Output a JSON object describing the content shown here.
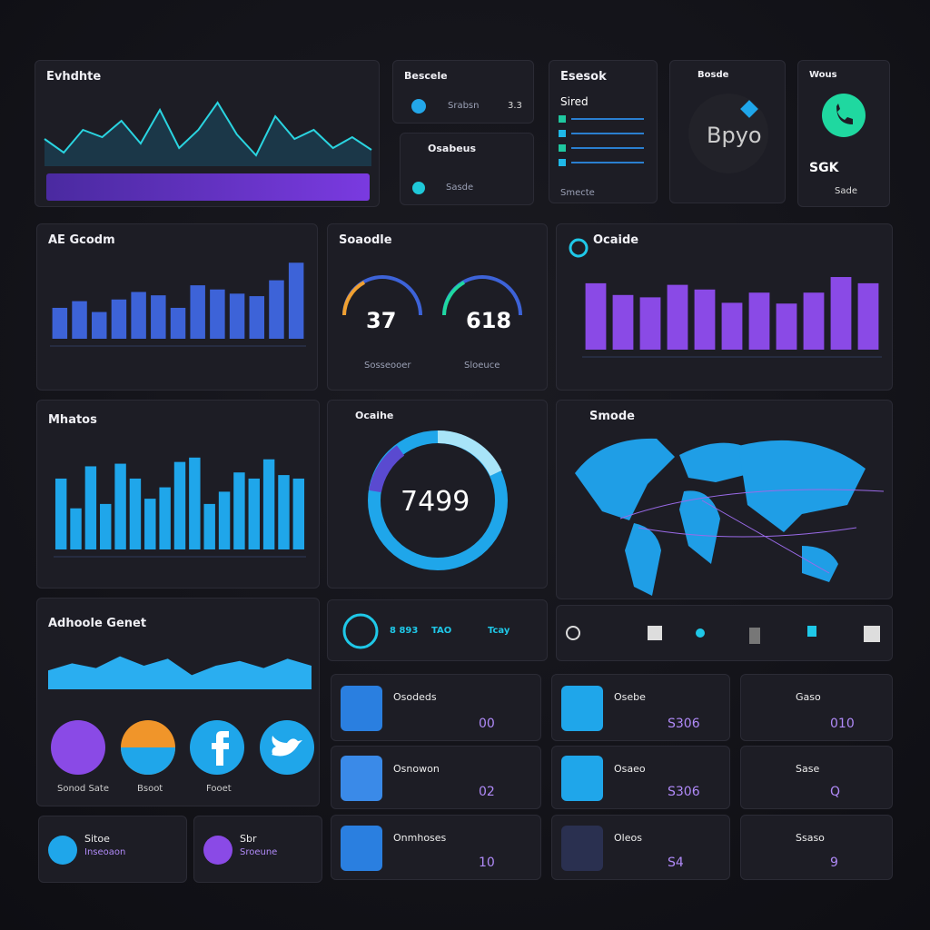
{
  "chart_data": [
    {
      "type": "line",
      "title": "Evhdhte",
      "values": [
        30,
        15,
        40,
        32,
        50,
        25,
        62,
        20,
        40,
        70,
        35,
        12,
        55,
        30,
        40,
        20,
        32,
        18
      ],
      "color": "#2ad4e0",
      "ylim": [
        0,
        80
      ]
    },
    {
      "type": "bar",
      "title": "AE Gcodm",
      "values": [
        37,
        45,
        32,
        47,
        56,
        52,
        37,
        64,
        59,
        54,
        51,
        70,
        91
      ],
      "color": "#3d63d8",
      "ylim": [
        0,
        100
      ]
    },
    {
      "type": "bar",
      "title": "Ocaide",
      "values": [
        85,
        70,
        67,
        83,
        77,
        60,
        73,
        59,
        73,
        93,
        85
      ],
      "color": "#8a4ae6",
      "ylim": [
        0,
        100
      ]
    },
    {
      "type": "bar",
      "title": "Mhatos",
      "values": [
        81,
        47,
        95,
        52,
        98,
        81,
        58,
        71,
        100,
        105,
        52,
        66,
        88,
        81,
        103,
        85,
        81
      ],
      "color": "#1fa6ea",
      "ylim": [
        0,
        110
      ]
    },
    {
      "type": "area",
      "title": "Adhoole Genet",
      "values": [
        40,
        55,
        45,
        70,
        50,
        65,
        30,
        50,
        60,
        45,
        65,
        50
      ],
      "color": "#2aaef0",
      "ylim": [
        0,
        100
      ]
    }
  ],
  "tiles": [
    {
      "title": "Bescele",
      "label": "Srabsn",
      "value": "3.3"
    },
    {
      "title": "Osabeus",
      "label": "Sasde"
    },
    {
      "title": "Esesok",
      "label": "Sired",
      "footer": "Smecte"
    },
    {
      "title": "Bosde",
      "label": "Bpyo"
    },
    {
      "title": "Wous",
      "label": "SGK",
      "footer": "Sade"
    }
  ],
  "gauges": {
    "title": "Soaodle",
    "items": [
      {
        "value": 37,
        "label": "Sosseooer"
      },
      {
        "value": 618,
        "label": "Sloeuce"
      }
    ]
  },
  "donut": {
    "title": "Ocaihe",
    "value": 7499
  },
  "map": {
    "title": "Smode"
  },
  "stats": [
    "8 893",
    "TAO",
    "Tcay"
  ],
  "social": {
    "labels": [
      "Sonod Sate",
      "Bsoot",
      "Fooet"
    ]
  },
  "cards": [
    {
      "title": "Osodeds",
      "value": "00"
    },
    {
      "title": "Osebe",
      "value": "S306"
    },
    {
      "title": "Gaso",
      "value": "010"
    },
    {
      "title": "Osnowon",
      "value": "02"
    },
    {
      "title": "Osaeo",
      "value": "S306"
    },
    {
      "title": "Sase",
      "value": "Q"
    },
    {
      "title": "Onmhoses",
      "value": "10"
    },
    {
      "title": "Oleos",
      "value": "S4"
    },
    {
      "title": "Ssaso",
      "value": "9"
    },
    {
      "title": "Sitoe",
      "value": "Inseoaon"
    },
    {
      "title": "Sbr",
      "value": "Sroeune"
    }
  ]
}
